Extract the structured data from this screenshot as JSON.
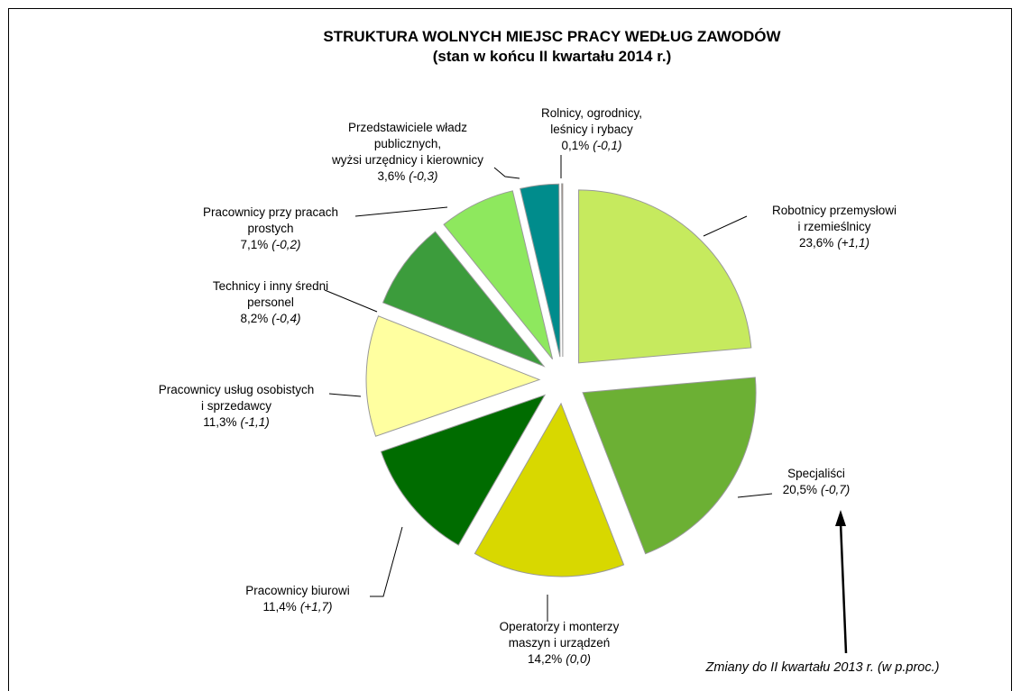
{
  "chart_data": {
    "type": "pie",
    "title": "STRUKTURA WOLNYCH MIEJSC PRACY WEDŁUG ZAWODÓW",
    "subtitle": "(stan w końcu II kwartału 2014 r.)",
    "categories": [
      "Robotnicy przemysłowi\ni rzemieślnicy",
      "Specjaliści",
      "Operatorzy i monterzy\nmaszyn i urządzeń",
      "Pracownicy biurowi",
      "Pracownicy usług osobistych\ni sprzedawcy",
      "Technicy i inny średni\npersonel",
      "Pracownicy przy pracach\nprostych",
      "Przedstawiciele władz\npublicznych,\nwyżsi urzędnicy i kierownicy",
      "Rolnicy, ogrodnicy,\nleśnicy i rybacy"
    ],
    "values": [
      23.6,
      20.5,
      14.2,
      11.4,
      11.3,
      8.2,
      7.1,
      3.6,
      0.1
    ],
    "value_labels": [
      "23,6%",
      "20,5%",
      "14,2%",
      "11,4%",
      "11,3%",
      "8,2%",
      "7,1%",
      "3,6%",
      "0,1%"
    ],
    "changes": [
      1.1,
      -0.7,
      0.0,
      1.7,
      -1.1,
      -0.4,
      -0.2,
      -0.3,
      -0.1
    ],
    "change_labels": [
      "(+1,1)",
      "(-0,7)",
      "(0,0)",
      "(+1,7)",
      "(-1,1)",
      "(-0,4)",
      "(-0,2)",
      "(-0,3)",
      "(-0,1)"
    ],
    "colors": [
      "#c6ea5e",
      "#6cb034",
      "#d8d800",
      "#006c00",
      "#ffffa0",
      "#3c9c3c",
      "#8ee85e",
      "#008c8c",
      "#a86a4a"
    ],
    "annotation": "Zmiany do II kwartału 2013 r. (w p.proc.)"
  }
}
